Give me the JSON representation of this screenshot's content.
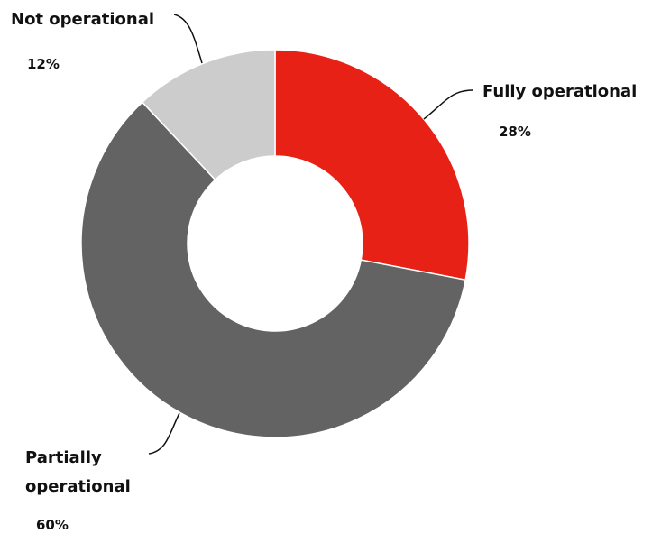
{
  "chart_data": {
    "type": "donut",
    "categories": [
      "Fully operational",
      "Partially operational",
      "Not operational"
    ],
    "values": [
      28,
      60,
      12
    ],
    "value_labels": [
      "28%",
      "60%",
      "12%"
    ],
    "colors": [
      "#e82117",
      "#636363",
      "#cccccc"
    ]
  }
}
